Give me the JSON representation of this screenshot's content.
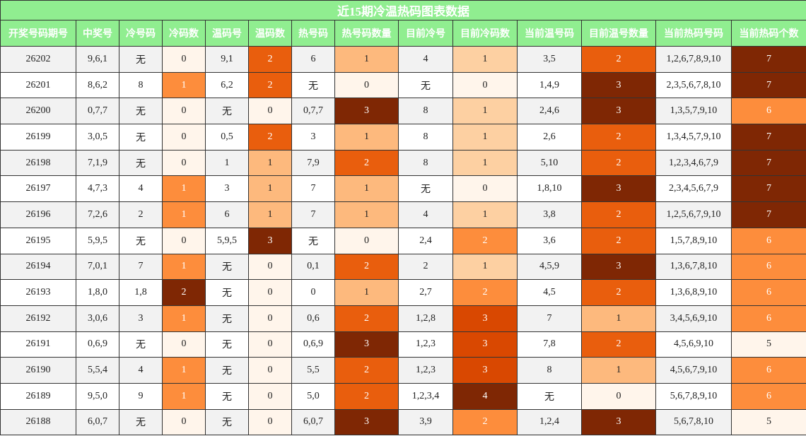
{
  "title": "近15期冷温热码图表数据",
  "table": {
    "headers": [
      "开奖号码期号",
      "中奖号",
      "冷号码",
      "冷码数",
      "温码号",
      "温码数",
      "热号码",
      "热号码数量",
      "目前冷号",
      "目前冷码数",
      "当前温号码",
      "目前温号数量",
      "当前热码号码",
      "当前热码个数"
    ],
    "rows": [
      [
        "26202",
        "9,6,1",
        "无",
        0,
        "9,1",
        2,
        "6",
        1,
        "4",
        1,
        "3,5",
        2,
        "1,2,6,7,8,9,10",
        7
      ],
      [
        "26201",
        "8,6,2",
        "8",
        1,
        "6,2",
        2,
        "无",
        0,
        "无",
        0,
        "1,4,9",
        3,
        "2,3,5,6,7,8,10",
        7
      ],
      [
        "26200",
        "0,7,7",
        "无",
        0,
        "无",
        0,
        "0,7,7",
        3,
        "8",
        1,
        "2,4,6",
        3,
        "1,3,5,7,9,10",
        6
      ],
      [
        "26199",
        "3,0,5",
        "无",
        0,
        "0,5",
        2,
        "3",
        1,
        "8",
        1,
        "2,6",
        2,
        "1,3,4,5,7,9,10",
        7
      ],
      [
        "26198",
        "7,1,9",
        "无",
        0,
        "1",
        1,
        "7,9",
        2,
        "8",
        1,
        "5,10",
        2,
        "1,2,3,4,6,7,9",
        7
      ],
      [
        "26197",
        "4,7,3",
        "4",
        1,
        "3",
        1,
        "7",
        1,
        "无",
        0,
        "1,8,10",
        3,
        "2,3,4,5,6,7,9",
        7
      ],
      [
        "26196",
        "7,2,6",
        "2",
        1,
        "6",
        1,
        "7",
        1,
        "4",
        1,
        "3,8",
        2,
        "1,2,5,6,7,9,10",
        7
      ],
      [
        "26195",
        "5,9,5",
        "无",
        0,
        "5,9,5",
        3,
        "无",
        0,
        "2,4",
        2,
        "3,6",
        2,
        "1,5,7,8,9,10",
        6
      ],
      [
        "26194",
        "7,0,1",
        "7",
        1,
        "无",
        0,
        "0,1",
        2,
        "2",
        1,
        "4,5,9",
        3,
        "1,3,6,7,8,10",
        6
      ],
      [
        "26193",
        "1,8,0",
        "1,8",
        2,
        "无",
        0,
        "0",
        1,
        "2,7",
        2,
        "4,5",
        2,
        "1,3,6,8,9,10",
        6
      ],
      [
        "26192",
        "3,0,6",
        "3",
        1,
        "无",
        0,
        "0,6",
        2,
        "1,2,8",
        3,
        "7",
        1,
        "3,4,5,6,9,10",
        6
      ],
      [
        "26191",
        "0,6,9",
        "无",
        0,
        "无",
        0,
        "0,6,9",
        3,
        "1,2,3",
        3,
        "7,8",
        2,
        "4,5,6,9,10",
        5
      ],
      [
        "26190",
        "5,5,4",
        "4",
        1,
        "无",
        0,
        "5,5",
        2,
        "1,2,3",
        3,
        "8",
        1,
        "4,5,6,7,9,10",
        6
      ],
      [
        "26189",
        "9,5,0",
        "9",
        1,
        "无",
        0,
        "5,0",
        2,
        "1,2,3,4",
        4,
        "无",
        0,
        "5,6,7,8,9,10",
        6
      ],
      [
        "26188",
        "6,0,7",
        "无",
        0,
        "无",
        0,
        "6,0,7",
        3,
        "3,9",
        2,
        "1,2,4",
        3,
        "5,6,7,8,10",
        5
      ]
    ]
  }
}
